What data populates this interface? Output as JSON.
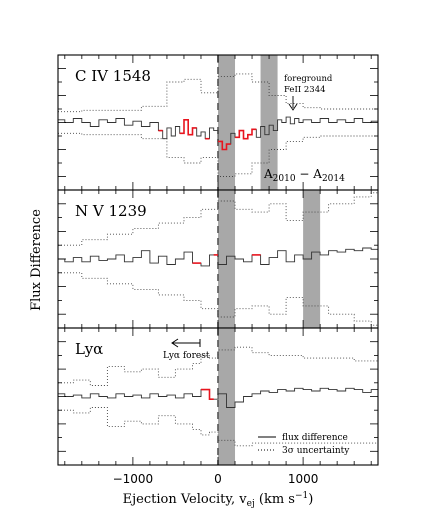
{
  "chart_data": [
    {
      "type": "line",
      "panel_label": "C IV 1548",
      "annotations": [
        "foreground",
        "FeII 2344"
      ],
      "difference_label": "A2010 − A2014",
      "shaded_regions": [
        [
          0,
          200
        ],
        [
          500,
          700
        ]
      ],
      "zero_line": 0,
      "series": [
        {
          "name": "flux difference",
          "x": [
            -1880,
            -1800,
            -1700,
            -1600,
            -1500,
            -1400,
            -1300,
            -1200,
            -1100,
            -1000,
            -900,
            -800,
            -700,
            -650,
            -600,
            -550,
            -500,
            -450,
            -400,
            -350,
            -300,
            -250,
            -200,
            -150,
            -100,
            -50,
            0,
            50,
            100,
            150,
            200,
            250,
            300,
            350,
            400,
            450,
            500,
            550,
            600,
            650,
            700,
            750,
            800,
            850,
            900,
            950,
            1000,
            1100,
            1200,
            1300,
            1400,
            1500,
            1600,
            1700,
            1800
          ],
          "y": [
            0.02,
            0.0,
            0.03,
            0.0,
            -0.03,
            0.02,
            0.0,
            0.03,
            -0.02,
            0.01,
            -0.03,
            0.0,
            -0.06,
            -0.12,
            -0.04,
            -0.1,
            -0.03,
            -0.08,
            0.02,
            -0.09,
            -0.04,
            -0.1,
            -0.07,
            -0.12,
            -0.04,
            -0.06,
            -0.14,
            -0.2,
            -0.16,
            -0.08,
            -0.11,
            -0.06,
            -0.12,
            -0.09,
            -0.05,
            -0.11,
            -0.03,
            -0.09,
            -0.02,
            -0.06,
            0.02,
            0.0,
            0.04,
            -0.01,
            0.03,
            0.0,
            0.02,
            0.0,
            0.03,
            0.0,
            0.02,
            0.0,
            0.03,
            0.0,
            0.01
          ]
        },
        {
          "name": "3σ uncertainty",
          "x": [
            -1880,
            -1600,
            -1200,
            -900,
            -600,
            -400,
            -200,
            0,
            200,
            400,
            600,
            800,
            1000,
            1200,
            1500,
            1800
          ],
          "upper": [
            0.08,
            0.09,
            0.09,
            0.12,
            0.3,
            0.32,
            0.22,
            0.34,
            0.36,
            0.3,
            0.2,
            0.14,
            0.11,
            0.1,
            0.1,
            0.1
          ],
          "lower": [
            -0.08,
            -0.09,
            -0.09,
            -0.12,
            -0.26,
            -0.3,
            -0.26,
            -0.4,
            -0.38,
            -0.3,
            -0.2,
            -0.14,
            -0.11,
            -0.1,
            -0.1,
            -0.1
          ]
        }
      ],
      "highlighted_ranges": [
        [
          -700,
          -650
        ],
        [
          -450,
          -250
        ],
        [
          -150,
          -100
        ],
        [
          0,
          150
        ],
        [
          200,
          450
        ]
      ]
    },
    {
      "type": "line",
      "panel_label": "N V 1239",
      "shaded_regions": [
        [
          0,
          200
        ],
        [
          1000,
          1200
        ]
      ],
      "zero_line": 0,
      "series": [
        {
          "name": "flux difference",
          "x": [
            -1880,
            -1800,
            -1700,
            -1600,
            -1500,
            -1400,
            -1300,
            -1200,
            -1100,
            -1000,
            -900,
            -800,
            -700,
            -600,
            -500,
            -400,
            -300,
            -200,
            -100,
            0,
            100,
            200,
            300,
            400,
            500,
            600,
            700,
            800,
            900,
            1000,
            1100,
            1200,
            1300,
            1400,
            1500,
            1600,
            1700,
            1800
          ],
          "y": [
            0.0,
            -0.02,
            0.01,
            -0.02,
            0.02,
            -0.01,
            0.0,
            0.03,
            -0.02,
            0.01,
            0.06,
            -0.03,
            0.02,
            -0.04,
            0.0,
            0.05,
            -0.03,
            -0.05,
            0.03,
            -0.04,
            0.02,
            0.0,
            -0.02,
            0.03,
            -0.04,
            0.01,
            0.06,
            -0.02,
            0.03,
            0.0,
            0.05,
            0.03,
            0.06,
            0.05,
            0.07,
            0.06,
            0.08,
            0.07
          ]
        },
        {
          "name": "3σ uncertainty",
          "x": [
            -1880,
            -1600,
            -1300,
            -1000,
            -700,
            -400,
            -200,
            0,
            200,
            400,
            600,
            800,
            1000,
            1300,
            1600,
            1800
          ],
          "upper": [
            0.1,
            0.14,
            0.18,
            0.22,
            0.26,
            0.3,
            0.36,
            0.42,
            0.36,
            0.34,
            0.4,
            0.28,
            0.34,
            0.4,
            0.45,
            0.48
          ],
          "lower": [
            -0.1,
            -0.14,
            -0.18,
            -0.22,
            -0.26,
            -0.3,
            -0.36,
            -0.42,
            -0.36,
            -0.34,
            -0.4,
            -0.28,
            -0.34,
            -0.4,
            -0.45,
            -0.48
          ]
        }
      ],
      "highlighted_ranges": [
        [
          -300,
          -200
        ],
        [
          -50,
          0
        ],
        [
          400,
          500
        ]
      ]
    },
    {
      "type": "line",
      "panel_label": "Lyα",
      "annotations": [
        "Lyα forest"
      ],
      "shaded_regions": [
        [
          0,
          200
        ]
      ],
      "zero_line": 0,
      "series": [
        {
          "name": "flux difference",
          "x": [
            -1880,
            -1800,
            -1700,
            -1600,
            -1500,
            -1400,
            -1300,
            -1200,
            -1100,
            -1000,
            -900,
            -800,
            -700,
            -600,
            -500,
            -400,
            -300,
            -200,
            -100,
            0,
            100,
            200,
            300,
            400,
            500,
            600,
            700,
            800,
            900,
            1000,
            1100,
            1200,
            1300,
            1400,
            1500,
            1600,
            1700,
            1800
          ],
          "y": [
            0.02,
            0.0,
            0.01,
            -0.01,
            0.02,
            0.0,
            -0.01,
            0.02,
            0.0,
            0.01,
            -0.01,
            0.02,
            0.0,
            0.01,
            -0.01,
            0.02,
            0.0,
            0.05,
            -0.02,
            0.02,
            -0.08,
            -0.04,
            0.0,
            0.02,
            0.04,
            0.03,
            0.05,
            0.04,
            0.06,
            0.05,
            0.04,
            0.06,
            0.05,
            0.04,
            0.06,
            0.05,
            0.03,
            0.05
          ]
        },
        {
          "name": "3σ uncertainty",
          "x": [
            -1880,
            -1700,
            -1500,
            -1300,
            -1100,
            -900,
            -700,
            -500,
            -300,
            -200,
            -100,
            0,
            200,
            400,
            600,
            800,
            1000,
            1200,
            1400,
            1600,
            1800
          ],
          "upper": [
            0.1,
            0.12,
            0.08,
            0.22,
            0.18,
            0.2,
            0.14,
            0.2,
            0.24,
            0.3,
            0.28,
            0.34,
            0.36,
            0.32,
            0.3,
            0.3,
            0.28,
            0.28,
            0.28,
            0.26,
            0.26
          ],
          "lower": [
            -0.1,
            -0.12,
            -0.08,
            -0.22,
            -0.18,
            -0.2,
            -0.14,
            -0.2,
            -0.24,
            -0.28,
            -0.26,
            -0.32,
            -0.36,
            -0.34,
            -0.34,
            -0.34,
            -0.34,
            -0.34,
            -0.34,
            -0.34,
            -0.34
          ]
        }
      ],
      "highlighted_ranges": [
        [
          -200,
          -50
        ]
      ]
    }
  ],
  "axes": {
    "xlabel": "Ejection Velocity, v",
    "xlabel_sub": "ej",
    "xlabel_unit": "(km s",
    "xlabel_unit_sup": "−1",
    "xlabel_unit_end": ")",
    "ylabel": "Flux Difference",
    "xlim": [
      -1880,
      1880
    ],
    "xticks": [
      -1000,
      0,
      1000
    ],
    "xtick_labels": [
      "−1000",
      "0",
      "1000"
    ],
    "ylim": [
      -0.5,
      0.5
    ]
  },
  "legend": {
    "placement": "bottom-right",
    "entries": [
      {
        "label": "flux difference",
        "style": "solid"
      },
      {
        "label": "3σ uncertainty",
        "style": "dotted"
      }
    ]
  },
  "colors": {
    "line": "#333333",
    "highlight": "#e8141e",
    "shade": "#a8a8a8",
    "dashed": "#555555"
  }
}
